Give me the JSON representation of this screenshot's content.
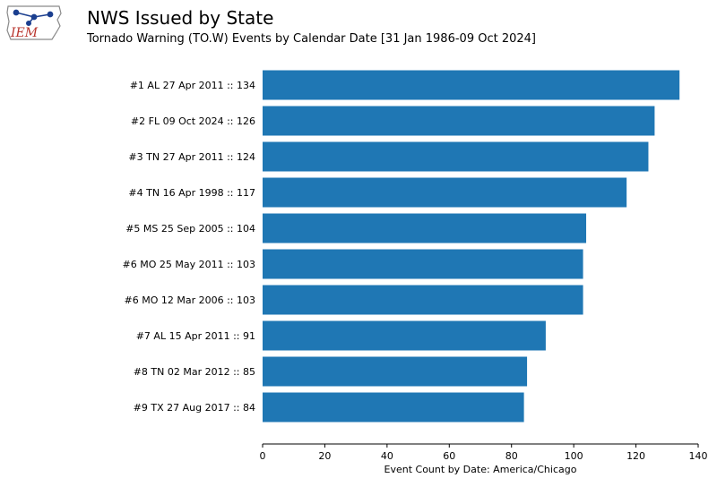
{
  "header": {
    "logo_text": "IEM",
    "title": "NWS Issued by State",
    "subtitle": "Tornado Warning (TO.W) Events by Calendar Date [31 Jan 1986-09 Oct 2024]"
  },
  "colors": {
    "bar": "#1f77b4",
    "axis": "#000000",
    "logo_text": "#b8342c",
    "logo_map": "#1b3f8f"
  },
  "chart_data": {
    "type": "bar",
    "orientation": "horizontal",
    "categories": [
      "#1 AL 27 Apr 2011 :: 134",
      "#2 FL 09 Oct 2024 :: 126",
      "#3 TN 27 Apr 2011 :: 124",
      "#4 TN 16 Apr 1998 :: 117",
      "#5 MS 25 Sep 2005 :: 104",
      "#6 MO 25 May 2011 :: 103",
      "#6 MO 12 Mar 2006 :: 103",
      "#7 AL 15 Apr 2011 :: 91",
      "#8 TN 02 Mar 2012 :: 85",
      "#9 TX 27 Aug 2017 :: 84"
    ],
    "values": [
      134,
      126,
      124,
      117,
      104,
      103,
      103,
      91,
      85,
      84
    ],
    "xlabel": "Event Count by Date: America/Chicago",
    "ylabel": "",
    "xlim": [
      0,
      140
    ],
    "xticks": [
      0,
      20,
      40,
      60,
      80,
      100,
      120,
      140
    ],
    "grid": false
  }
}
